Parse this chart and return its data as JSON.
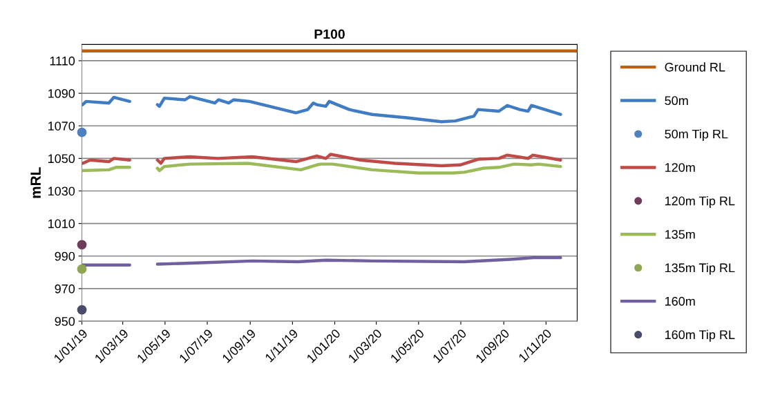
{
  "chart_data": {
    "type": "line",
    "title": "P100",
    "ylabel": "mRL",
    "ylim": [
      950,
      1120
    ],
    "yticks": [
      950,
      970,
      990,
      1010,
      1030,
      1050,
      1070,
      1090,
      1110
    ],
    "xlim": [
      "2019-01-01",
      "2020-12-16"
    ],
    "xticks": [
      {
        "value": "2019-01-01",
        "label": "1/01/19"
      },
      {
        "value": "2019-03-01",
        "label": "1/03/19"
      },
      {
        "value": "2019-05-01",
        "label": "1/05/19"
      },
      {
        "value": "2019-07-01",
        "label": "1/07/19"
      },
      {
        "value": "2019-09-01",
        "label": "1/09/19"
      },
      {
        "value": "2019-11-01",
        "label": "1/11/19"
      },
      {
        "value": "2020-01-01",
        "label": "1/01/20"
      },
      {
        "value": "2020-03-01",
        "label": "1/03/20"
      },
      {
        "value": "2020-05-01",
        "label": "1/05/20"
      },
      {
        "value": "2020-07-01",
        "label": "1/07/20"
      },
      {
        "value": "2020-09-01",
        "label": "1/09/20"
      },
      {
        "value": "2020-11-01",
        "label": "1/11/20"
      }
    ],
    "grid": "y",
    "legend": "right",
    "line_style": "solid",
    "series": [
      {
        "name": "Ground RL",
        "marker": "none",
        "color": "#c0600f",
        "x": [
          "2019-01-01",
          "2020-12-16"
        ],
        "values": [
          1116,
          1116
        ]
      },
      {
        "name": "50m",
        "marker": "none",
        "color": "#3f7cc4",
        "x": [
          "2019-01-02",
          "2019-01-07",
          "2019-02-09",
          "2019-02-16",
          "2019-03-11",
          "2019-04-01",
          "2019-04-20",
          "2019-04-23",
          "2019-04-30",
          "2019-05-30",
          "2019-06-06",
          "2019-07-12",
          "2019-07-17",
          "2019-08-01",
          "2019-08-08",
          "2019-08-31",
          "2019-11-06",
          "2019-11-23",
          "2019-12-01",
          "2019-12-06",
          "2019-12-19",
          "2019-12-24",
          "2020-01-22",
          "2020-02-24",
          "2020-04-14",
          "2020-06-03",
          "2020-06-23",
          "2020-07-20",
          "2020-07-26",
          "2020-08-25",
          "2020-09-06",
          "2020-09-24",
          "2020-10-06",
          "2020-10-11",
          "2020-11-22"
        ],
        "values": [
          1083,
          1085,
          1084,
          1087.5,
          1085,
          null,
          1083,
          1082,
          1087,
          1086,
          1088,
          1084,
          1086,
          1084,
          1086,
          1085,
          1078,
          1080,
          1084,
          1083,
          1082,
          1085,
          1080,
          1077,
          1075,
          1072.5,
          1073,
          1076,
          1080,
          1079,
          1082.5,
          1080,
          1079,
          1082.5,
          1077
        ]
      },
      {
        "name": "50m Tip RL",
        "type": "scatter",
        "marker": "circle",
        "color": "#4f81bd",
        "x": [
          "2019-01-01"
        ],
        "values": [
          1066
        ]
      },
      {
        "name": "120m",
        "marker": "none",
        "color": "#be4b48",
        "x": [
          "2019-01-02",
          "2019-01-13",
          "2019-02-09",
          "2019-02-16",
          "2019-03-11",
          "2019-04-01",
          "2019-04-20",
          "2019-04-25",
          "2019-04-30",
          "2019-06-06",
          "2019-07-16",
          "2019-09-04",
          "2019-11-06",
          "2019-12-06",
          "2019-12-19",
          "2019-12-26",
          "2020-02-07",
          "2020-03-28",
          "2020-06-03",
          "2020-06-30",
          "2020-07-26",
          "2020-08-25",
          "2020-09-06",
          "2020-10-06",
          "2020-10-13",
          "2020-11-22"
        ],
        "values": [
          1047,
          1049,
          1048,
          1050,
          1049,
          null,
          1049,
          1047,
          1050,
          1051,
          1050,
          1051,
          1048,
          1051.5,
          1050,
          1052.5,
          1049,
          1047,
          1045.5,
          1046,
          1049.5,
          1050,
          1052,
          1050,
          1052,
          1049
        ]
      },
      {
        "name": "120m Tip RL",
        "type": "scatter",
        "marker": "circle",
        "color": "#6e3d5c",
        "x": [
          "2019-01-01"
        ],
        "values": [
          997
        ]
      },
      {
        "name": "135m",
        "marker": "none",
        "color": "#9bbb59",
        "x": [
          "2019-01-02",
          "2019-02-09",
          "2019-02-19",
          "2019-03-11",
          "2019-04-01",
          "2019-04-20",
          "2019-04-23",
          "2019-04-30",
          "2019-06-06",
          "2019-08-29",
          "2019-11-13",
          "2019-12-06",
          "2019-12-12",
          "2019-12-29",
          "2020-02-24",
          "2020-05-01",
          "2020-06-20",
          "2020-07-06",
          "2020-08-03",
          "2020-08-25",
          "2020-09-16",
          "2020-10-11",
          "2020-10-21",
          "2020-11-22"
        ],
        "values": [
          1042.5,
          1043,
          1044.5,
          1044.5,
          null,
          1044,
          1042.5,
          1045,
          1046.5,
          1047,
          1043,
          1046,
          1046.5,
          1046.5,
          1043,
          1041,
          1041,
          1041.5,
          1044,
          1044.5,
          1046.5,
          1046,
          1046.5,
          1045
        ]
      },
      {
        "name": "135m Tip RL",
        "type": "scatter",
        "marker": "circle",
        "color": "#8fa655",
        "x": [
          "2019-01-01"
        ],
        "values": [
          982
        ]
      },
      {
        "name": "160m",
        "marker": "none",
        "color": "#7060a0",
        "x": [
          "2019-01-02",
          "2019-03-11",
          "2019-04-01",
          "2019-04-20",
          "2019-06-29",
          "2019-09-04",
          "2019-11-09",
          "2019-12-19",
          "2020-02-24",
          "2020-07-06",
          "2020-09-11",
          "2020-10-14",
          "2020-11-22"
        ],
        "values": [
          984.5,
          984.5,
          null,
          985,
          986,
          987,
          986.5,
          987.5,
          987,
          986.5,
          988,
          989,
          989
        ]
      },
      {
        "name": "160m Tip RL",
        "type": "scatter",
        "marker": "circle",
        "color": "#4a4a6a",
        "x": [
          "2019-01-01"
        ],
        "values": [
          957
        ]
      }
    ]
  }
}
